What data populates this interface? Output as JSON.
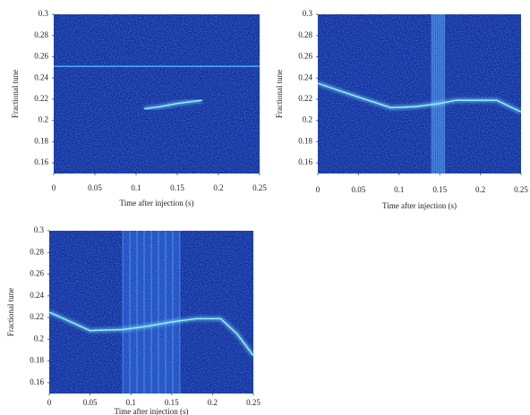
{
  "chart_data": [
    {
      "type": "line",
      "xlabel": "Time after injection (s)",
      "ylabel": "Fractional tune",
      "xlim": [
        0,
        0.25
      ],
      "ylim": [
        0.15,
        0.3
      ],
      "xticks": [
        0,
        0.05,
        0.1,
        0.15,
        0.2,
        0.25
      ],
      "yticks": [
        0.16,
        0.18,
        0.2,
        0.22,
        0.24,
        0.26,
        0.28,
        0.3
      ],
      "background": "#0f2f9c",
      "series": [
        {
          "color": "#4fb8ff",
          "x": [
            0,
            0.25
          ],
          "values": [
            0.251,
            0.251
          ]
        },
        {
          "color": "#8ff4ff",
          "x": [
            0.11,
            0.13,
            0.15,
            0.18
          ],
          "values": [
            0.211,
            0.213,
            0.216,
            0.219
          ]
        }
      ],
      "bursts": []
    },
    {
      "type": "line",
      "xlabel": "Time after injection (s)",
      "ylabel": "Fractional tune",
      "xlim": [
        0,
        0.25
      ],
      "ylim": [
        0.15,
        0.3
      ],
      "xticks": [
        0,
        0.05,
        0.1,
        0.15,
        0.2,
        0.25
      ],
      "yticks": [
        0.16,
        0.18,
        0.2,
        0.22,
        0.24,
        0.26,
        0.28,
        0.3
      ],
      "background": "#0f2f9c",
      "series": [
        {
          "color": "#8ff4ff",
          "x": [
            0,
            0.05,
            0.09,
            0.12,
            0.15,
            0.17,
            0.22,
            0.25
          ],
          "values": [
            0.235,
            0.222,
            0.212,
            0.213,
            0.216,
            0.219,
            0.219,
            0.208
          ]
        }
      ],
      "bursts": [
        [
          0.14,
          0.156
        ]
      ]
    },
    {
      "type": "line",
      "xlabel": "Time after injection (s)",
      "ylabel": "Fractional tune",
      "xlim": [
        0,
        0.25
      ],
      "ylim": [
        0.15,
        0.3
      ],
      "xticks": [
        0,
        0.05,
        0.1,
        0.15,
        0.2,
        0.25
      ],
      "yticks": [
        0.16,
        0.18,
        0.2,
        0.22,
        0.24,
        0.26,
        0.28,
        0.3
      ],
      "background": "#0f2f9c",
      "series": [
        {
          "color": "#8ff4ff",
          "x": [
            0,
            0.05,
            0.09,
            0.12,
            0.15,
            0.18,
            0.21,
            0.23,
            0.25
          ],
          "values": [
            0.225,
            0.208,
            0.209,
            0.212,
            0.216,
            0.219,
            0.219,
            0.205,
            0.185
          ]
        }
      ],
      "bursts": [
        [
          0.09,
          0.16
        ]
      ]
    }
  ]
}
